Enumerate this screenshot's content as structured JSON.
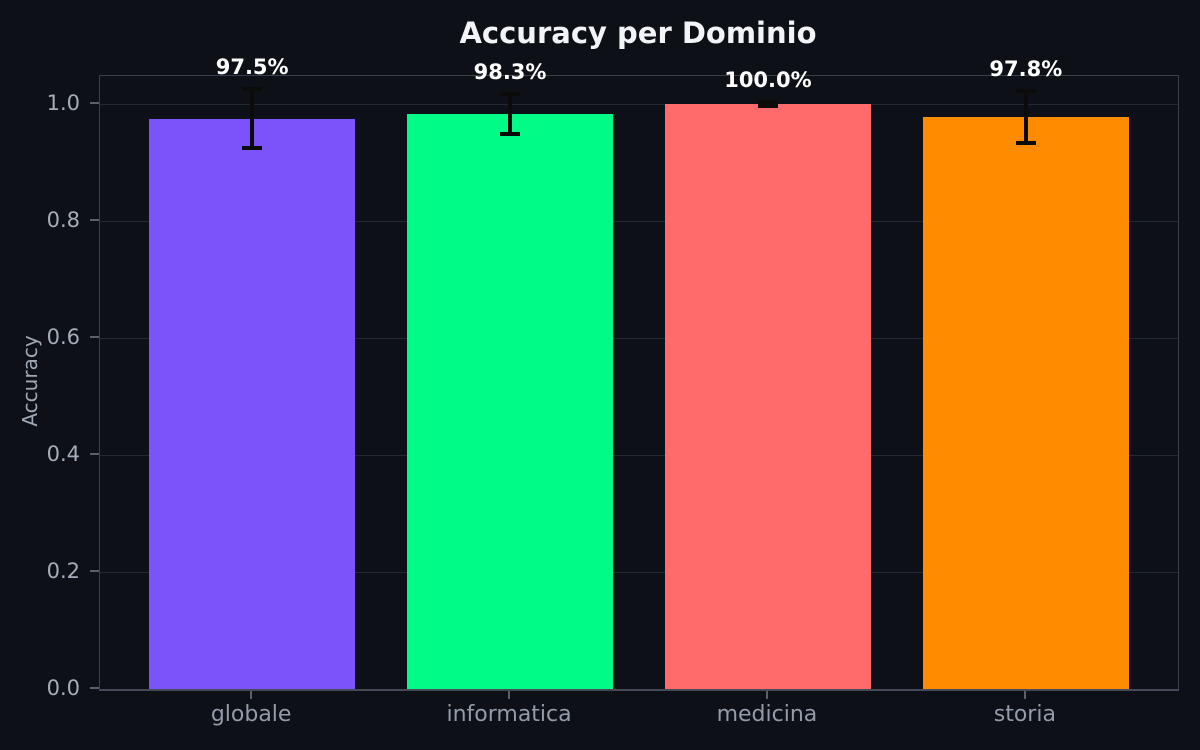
{
  "chart_data": {
    "type": "bar",
    "title": "Accuracy per Dominio",
    "xlabel": "",
    "ylabel": "Accuracy",
    "categories": [
      "globale",
      "informatica",
      "medicina",
      "storia"
    ],
    "values": [
      0.975,
      0.983,
      1.0,
      0.978
    ],
    "value_labels": [
      "97.5%",
      "98.3%",
      "100.0%",
      "97.8%"
    ],
    "errors": [
      0.05,
      0.034,
      0.004,
      0.044
    ],
    "bar_colors": [
      "#7c52fa",
      "#00fb87",
      "#ff6b6b",
      "#ff8c00"
    ],
    "ylim": [
      0,
      1.048
    ],
    "yticks": [
      0.0,
      0.2,
      0.4,
      0.6,
      0.8,
      1.0
    ],
    "ytick_labels": [
      "0.0",
      "0.2",
      "0.4",
      "0.6",
      "0.8",
      "1.0"
    ],
    "grid": "horizontal",
    "legend": "none",
    "bar_width_fraction": 0.8
  },
  "colors": {
    "background": "#0d1117",
    "title_text": "#f2f4f7",
    "tick_text": "#a5adb9",
    "x_tick_text": "#939ba8",
    "axis_label_text": "#a0a8b4",
    "grid": "#222834",
    "spine": "#39404b",
    "bottom_spine": "#444b56",
    "error_bar": "#0b0b0b",
    "value_label_text": "#ffffff",
    "tick_mark": "#596069"
  }
}
